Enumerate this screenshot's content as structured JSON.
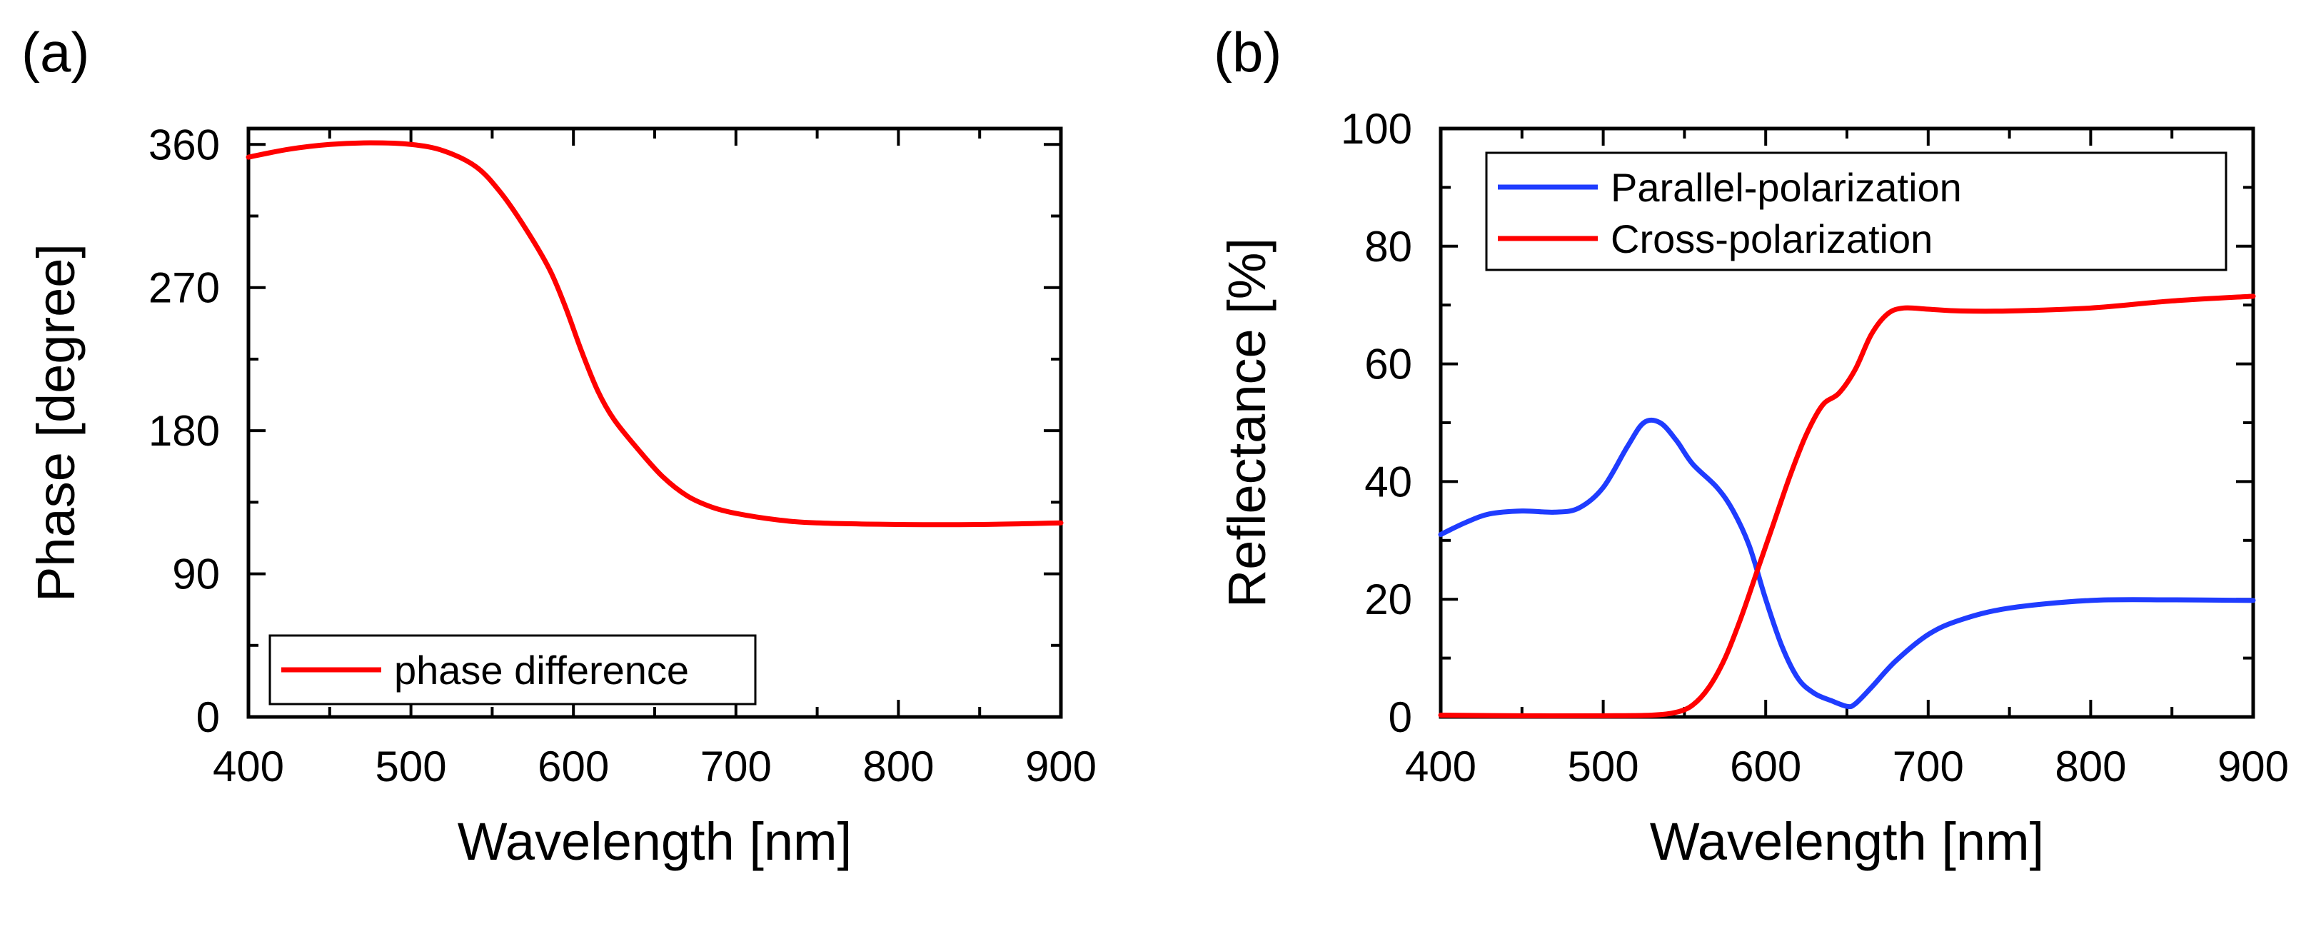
{
  "chart_data": [
    {
      "panel_label": "(a)",
      "type": "line",
      "xlabel": "Wavelength [nm]",
      "ylabel": "Phase [degree]",
      "xlim": [
        400,
        900
      ],
      "ylim": [
        0,
        370
      ],
      "xticks": [
        400,
        500,
        600,
        700,
        800,
        900
      ],
      "yticks": [
        0,
        90,
        180,
        270,
        360
      ],
      "legend_position": "bottom-left",
      "series": [
        {
          "name": "phase difference",
          "color": "#ff0000",
          "x": [
            400,
            425,
            450,
            475,
            500,
            520,
            540,
            555,
            570,
            585,
            595,
            605,
            615,
            625,
            640,
            655,
            670,
            685,
            700,
            725,
            750,
            800,
            850,
            900
          ],
          "y": [
            352,
            357,
            360,
            361,
            360,
            356,
            346,
            330,
            308,
            282,
            258,
            230,
            205,
            187,
            168,
            151,
            139,
            132,
            128,
            124,
            122,
            121,
            121,
            122
          ]
        }
      ]
    },
    {
      "panel_label": "(b)",
      "type": "line",
      "xlabel": "Wavelength [nm]",
      "ylabel": "Reflectance [%]",
      "xlim": [
        400,
        900
      ],
      "ylim": [
        0,
        100
      ],
      "xticks": [
        400,
        500,
        600,
        700,
        800,
        900
      ],
      "yticks": [
        0,
        20,
        40,
        60,
        80,
        100
      ],
      "legend_position": "top-left",
      "series": [
        {
          "name": "Parallel-polarization",
          "color": "#1f3cff",
          "x": [
            400,
            415,
            430,
            450,
            470,
            485,
            500,
            515,
            525,
            535,
            545,
            555,
            570,
            580,
            590,
            600,
            610,
            620,
            630,
            640,
            650,
            655,
            665,
            680,
            700,
            720,
            750,
            800,
            850,
            900
          ],
          "y": [
            31,
            33,
            34.5,
            35,
            34.8,
            35.5,
            39,
            46,
            50,
            50,
            47,
            43,
            39,
            35,
            29,
            20,
            12,
            6.5,
            4,
            2.8,
            1.8,
            2.2,
            5,
            9.5,
            14,
            16.5,
            18.5,
            19.8,
            19.9,
            19.8
          ]
        },
        {
          "name": "Cross-polarization",
          "color": "#ff0000",
          "x": [
            400,
            450,
            500,
            530,
            545,
            555,
            565,
            575,
            585,
            595,
            605,
            615,
            625,
            635,
            645,
            655,
            665,
            675,
            685,
            700,
            720,
            750,
            800,
            850,
            900
          ],
          "y": [
            0.3,
            0.2,
            0.2,
            0.3,
            0.8,
            2,
            5,
            10,
            17,
            25,
            33,
            41,
            48,
            53,
            55,
            59,
            65,
            68.5,
            69.5,
            69.3,
            69,
            69,
            69.5,
            70.7,
            71.5
          ]
        }
      ]
    }
  ]
}
